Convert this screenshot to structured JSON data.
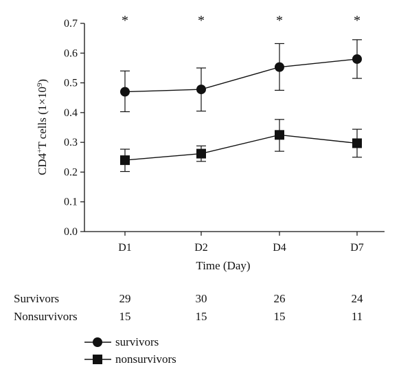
{
  "chart_data": {
    "type": "line",
    "categories": [
      "D1",
      "D2",
      "D4",
      "D7"
    ],
    "xlabel": "Time (Day)",
    "ylabel": {
      "base": "CD4",
      "sup": "+",
      "mid": "T cells (1×10",
      "exp": "9",
      "end": ")"
    },
    "ylim": [
      0,
      0.7
    ],
    "yticks": [
      "0.0",
      "0.1",
      "0.2",
      "0.3",
      "0.4",
      "0.5",
      "0.6",
      "0.7"
    ],
    "significance": [
      "*",
      "*",
      "*",
      "*"
    ],
    "series": [
      {
        "name": "survivors",
        "marker": "circle",
        "values": [
          0.47,
          0.478,
          0.553,
          0.58
        ],
        "err_low": [
          0.403,
          0.405,
          0.475,
          0.515
        ],
        "err_high": [
          0.54,
          0.55,
          0.632,
          0.645
        ]
      },
      {
        "name": "nonsurvivors",
        "marker": "square",
        "values": [
          0.24,
          0.262,
          0.325,
          0.297
        ],
        "err_low": [
          0.202,
          0.236,
          0.27,
          0.25
        ],
        "err_high": [
          0.277,
          0.288,
          0.377,
          0.344
        ]
      }
    ],
    "counts": [
      {
        "label": "Survivors",
        "values": [
          "29",
          "30",
          "26",
          "24"
        ]
      },
      {
        "label": "Nonsurvivors",
        "values": [
          "15",
          "15",
          "15",
          "11"
        ]
      }
    ],
    "legend_position": "bottom-left",
    "grid": false
  }
}
